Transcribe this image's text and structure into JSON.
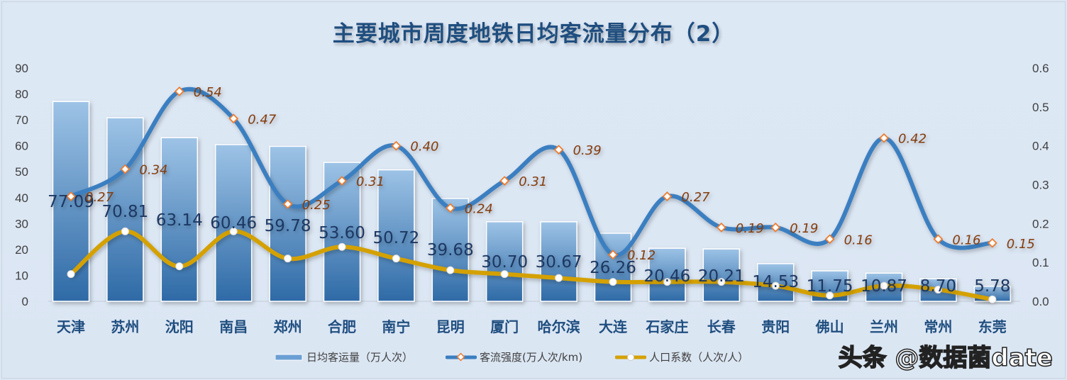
{
  "title": "主要城市周度地铁日均客流量分布（2）",
  "legend": {
    "bar": "日均客运量（万人次）",
    "line1": "客流强度(万人次/km)",
    "line2": "人口系数（人次/人）"
  },
  "watermark": "头条 @数据菌date",
  "colors": {
    "bar_top": "#9dc3e6",
    "bar_bottom": "#2e6aa6",
    "intensity_line": "#3a7fc1",
    "intensity_marker": "#ed7d31",
    "intensity_label": "#843c0c",
    "population_line": "#d4a106",
    "bar_label": "#1f3864"
  },
  "chart_data": {
    "type": "bar+line",
    "title": "主要城市周度地铁日均客流量分布（2）",
    "categories": [
      "天津",
      "苏州",
      "沈阳",
      "南昌",
      "郑州",
      "合肥",
      "南宁",
      "昆明",
      "厦门",
      "哈尔滨",
      "大连",
      "石家庄",
      "长春",
      "贵阳",
      "佛山",
      "兰州",
      "常州",
      "东莞"
    ],
    "series": [
      {
        "name": "日均客运量（万人次）",
        "type": "bar",
        "axis": "left",
        "values": [
          77.09,
          70.81,
          63.14,
          60.46,
          59.78,
          53.6,
          50.72,
          39.68,
          30.7,
          30.67,
          26.26,
          20.46,
          20.21,
          14.53,
          11.75,
          10.87,
          8.7,
          5.78
        ],
        "labels": [
          "77.09",
          "70.81",
          "63.14",
          "60.46",
          "59.78",
          "53.60",
          "50.72",
          "39.68",
          "30.70",
          "30.67",
          "26.26",
          "20.46",
          "20.21",
          "14.53",
          "11.75",
          "10.87",
          "8.70",
          "5.78"
        ]
      },
      {
        "name": "客流强度(万人次/km)",
        "type": "line",
        "axis": "right",
        "values": [
          0.27,
          0.34,
          0.54,
          0.47,
          0.25,
          0.31,
          0.4,
          0.24,
          0.31,
          0.39,
          0.12,
          0.27,
          0.19,
          0.19,
          0.16,
          0.42,
          0.16,
          0.15
        ],
        "labels": [
          "0.27",
          "0.34",
          "0.54",
          "0.47",
          "0.25",
          "0.31",
          "0.40",
          "0.24",
          "0.31",
          "0.39",
          "0.12",
          "0.27",
          "0.19",
          "0.19",
          "0.16",
          "0.42",
          "0.16",
          "0.15"
        ]
      },
      {
        "name": "人口系数（人次/人）",
        "type": "line",
        "axis": "right",
        "values": [
          0.07,
          0.18,
          0.09,
          0.18,
          0.11,
          0.14,
          0.11,
          0.08,
          0.07,
          0.06,
          0.05,
          0.05,
          0.05,
          0.04,
          0.015,
          0.04,
          0.03,
          0.005
        ]
      }
    ],
    "y_left": {
      "min": 0,
      "max": 90,
      "ticks": [
        "0",
        "10",
        "20",
        "30",
        "40",
        "50",
        "60",
        "70",
        "80",
        "90"
      ]
    },
    "y_right": {
      "min": 0,
      "max": 0.6,
      "ticks": [
        "0.0",
        "0.1",
        "0.2",
        "0.3",
        "0.4",
        "0.5",
        "0.6"
      ]
    },
    "grid": false,
    "legend_position": "bottom"
  }
}
